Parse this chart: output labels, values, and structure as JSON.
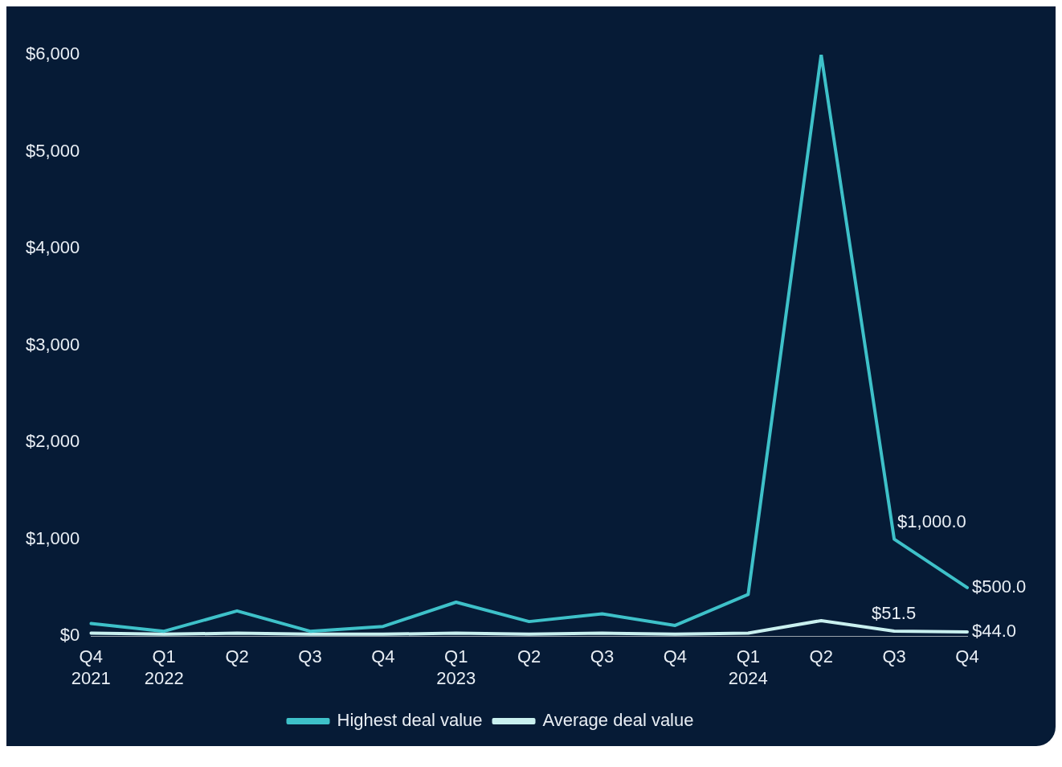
{
  "chart_data": {
    "type": "line",
    "categories": [
      "Q4\n2021",
      "Q1\n2022",
      "Q2",
      "Q3",
      "Q4",
      "Q1\n2023",
      "Q2",
      "Q3",
      "Q4",
      "Q1\n2024",
      "Q2",
      "Q3",
      "Q4"
    ],
    "series": [
      {
        "name": "Highest deal value",
        "color": "#3ec1c9",
        "values": [
          130,
          50,
          260,
          50,
          100,
          350,
          150,
          230,
          110,
          430,
          6000,
          1000,
          500
        ],
        "value_labels": [
          null,
          null,
          null,
          null,
          null,
          null,
          null,
          null,
          null,
          null,
          null,
          "$1,000.0",
          "$500.0"
        ]
      },
      {
        "name": "Average deal value",
        "color": "#c9f0ef",
        "values": [
          30,
          20,
          30,
          20,
          20,
          30,
          20,
          30,
          20,
          30,
          160,
          51.5,
          44
        ],
        "value_labels": [
          null,
          null,
          null,
          null,
          null,
          null,
          null,
          null,
          null,
          null,
          null,
          "$51.5",
          "$44.0"
        ]
      }
    ],
    "ylim": [
      0,
      6000
    ],
    "yticks": [
      {
        "value": 0,
        "label": "$0"
      },
      {
        "value": 1000,
        "label": "$1,000"
      },
      {
        "value": 2000,
        "label": "$2,000"
      },
      {
        "value": 3000,
        "label": "$3,000"
      },
      {
        "value": 4000,
        "label": "$4,000"
      },
      {
        "value": 5000,
        "label": "$5,000"
      },
      {
        "value": 6000,
        "label": "$6,000"
      }
    ],
    "grid": false,
    "legend": "bottom",
    "marker": "none",
    "line_style": "solid"
  }
}
